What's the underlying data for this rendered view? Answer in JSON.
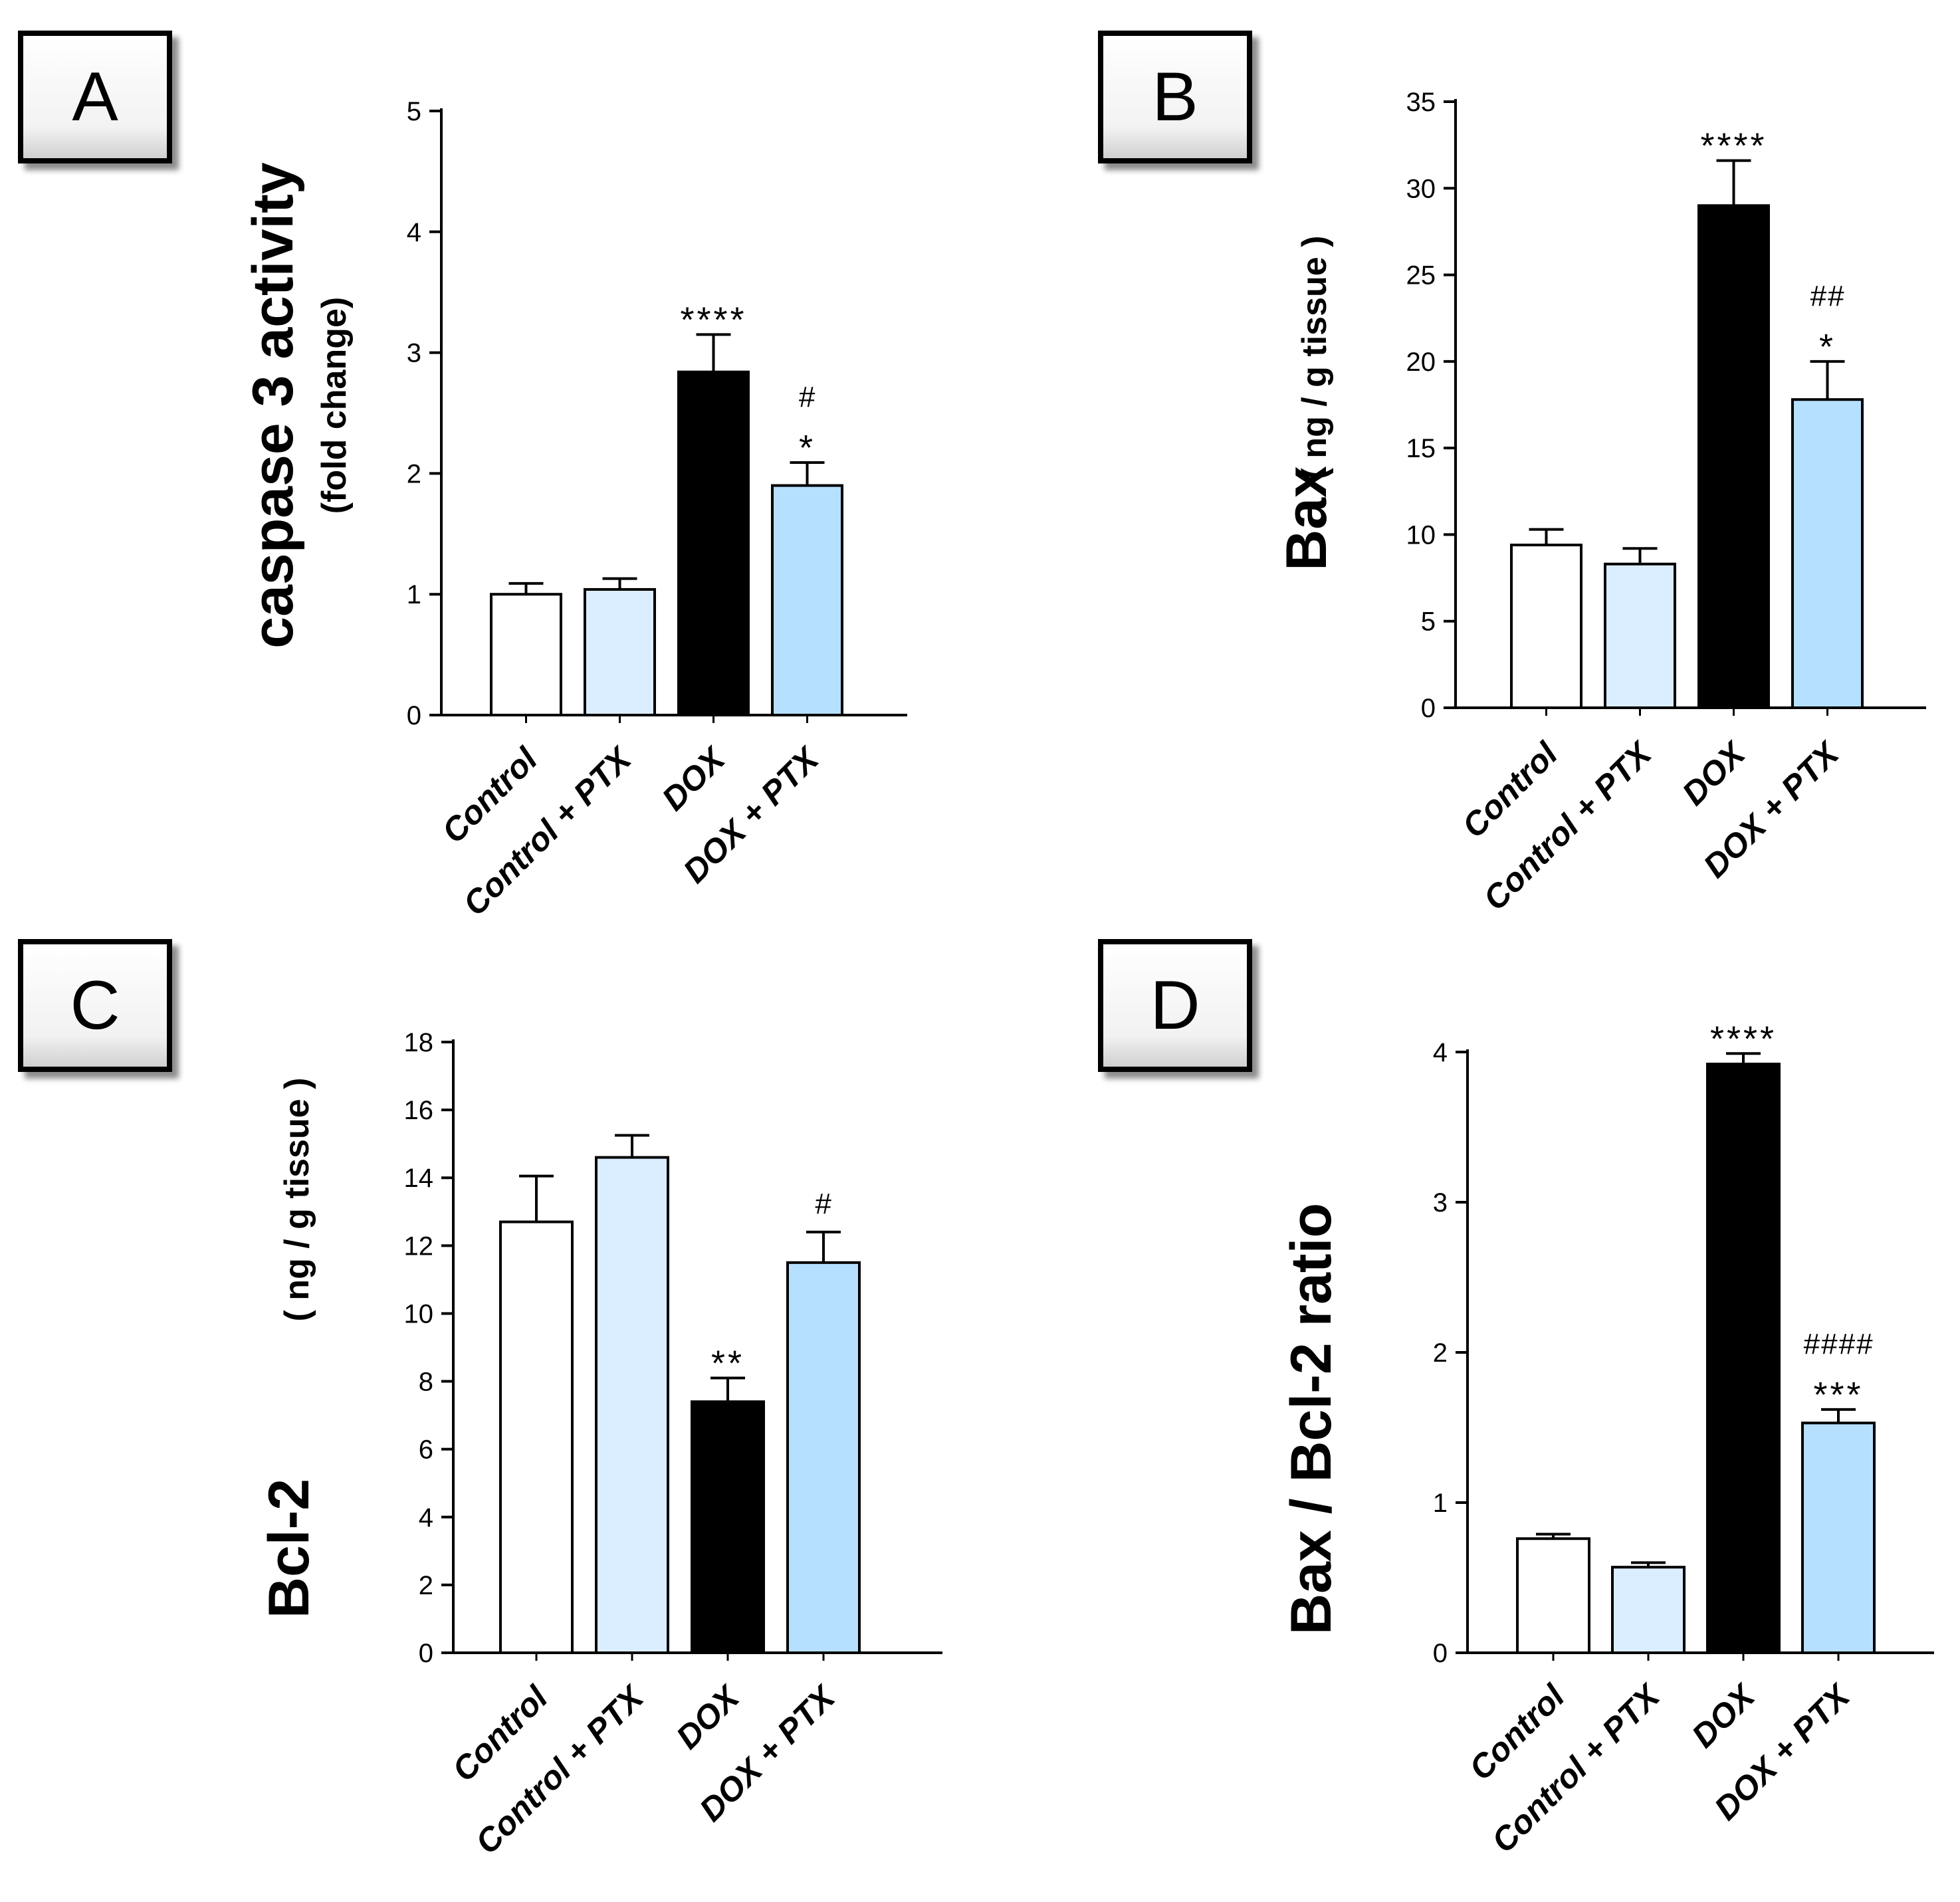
{
  "panels": [
    {
      "label": "A"
    },
    {
      "label": "B"
    },
    {
      "label": "C"
    },
    {
      "label": "D"
    }
  ],
  "colors": {
    "control": "#ffffff",
    "control_ptx": "#dbeeff",
    "dox": "#000000",
    "dox_ptx": "#b6e0ff",
    "stroke": "#000000"
  },
  "chart_data": [
    {
      "type": "bar",
      "panel": "A",
      "title": "",
      "ylabel": "caspase 3 activity",
      "ylabel_sub": "(fold change)",
      "xlabel": "",
      "categories": [
        "Control",
        "Control + PTX",
        "DOX",
        "DOX + PTX"
      ],
      "values": [
        1.0,
        1.04,
        2.84,
        1.9
      ],
      "errors": [
        0.09,
        0.09,
        0.31,
        0.19
      ],
      "annotations": [
        [],
        [],
        [
          "****"
        ],
        [
          "#",
          "*"
        ]
      ],
      "ylim": [
        0,
        5
      ],
      "yticks": [
        "0",
        "1",
        "2",
        "3",
        "4",
        "5"
      ],
      "legend": "none",
      "grid": false
    },
    {
      "type": "bar",
      "panel": "B",
      "title": "",
      "ylabel": "Bax",
      "ylabel_sub": "( ng / g tissue )",
      "xlabel": "",
      "categories": [
        "Control",
        "Control + PTX",
        "DOX",
        "DOX + PTX"
      ],
      "values": [
        9.4,
        8.3,
        29.0,
        17.8
      ],
      "errors": [
        0.9,
        0.9,
        2.6,
        2.2
      ],
      "annotations": [
        [],
        [],
        [
          "****"
        ],
        [
          "##",
          "*"
        ]
      ],
      "ylim": [
        0,
        35
      ],
      "yticks": [
        "0",
        "5",
        "10",
        "15",
        "20",
        "25",
        "30",
        "35"
      ],
      "legend": "none",
      "grid": false
    },
    {
      "type": "bar",
      "panel": "C",
      "title": "",
      "ylabel": "Bcl-2",
      "ylabel_sub": "( ng / g tissue )",
      "xlabel": "",
      "categories": [
        "Control",
        "Control + PTX",
        "DOX",
        "DOX + PTX"
      ],
      "values": [
        12.7,
        14.6,
        7.4,
        11.5
      ],
      "errors": [
        1.35,
        0.65,
        0.7,
        0.9
      ],
      "annotations": [
        [],
        [],
        [
          "**"
        ],
        [
          "#"
        ]
      ],
      "ylim": [
        0,
        18
      ],
      "yticks": [
        "0",
        "2",
        "4",
        "6",
        "8",
        "10",
        "12",
        "14",
        "16",
        "18"
      ],
      "legend": "none",
      "grid": false
    },
    {
      "type": "bar",
      "panel": "D",
      "title": "",
      "ylabel": "Bax / Bcl-2 ratio",
      "ylabel_sub": "",
      "xlabel": "",
      "categories": [
        "Control",
        "Control + PTX",
        "DOX",
        "DOX + PTX"
      ],
      "values": [
        0.76,
        0.57,
        3.92,
        1.53
      ],
      "errors": [
        0.03,
        0.03,
        0.07,
        0.09
      ],
      "annotations": [
        [],
        [],
        [
          "****"
        ],
        [
          "####",
          "***"
        ]
      ],
      "ylim": [
        0,
        4
      ],
      "yticks": [
        "0",
        "1",
        "2",
        "3",
        "4"
      ],
      "legend": "none",
      "grid": false
    }
  ]
}
